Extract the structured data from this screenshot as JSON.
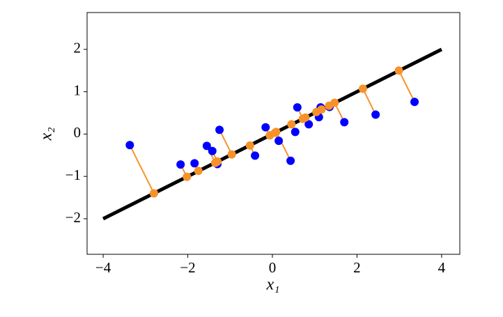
{
  "chart_data": {
    "type": "scatter",
    "x_label": "x₁",
    "y_label": "x₂",
    "xlim": [
      -4.38,
      4.43
    ],
    "ylim": [
      -2.84,
      2.87
    ],
    "xticks": [
      {
        "value": -4,
        "label": "−4"
      },
      {
        "value": -2,
        "label": "−2"
      },
      0,
      2,
      4
    ],
    "yticks": [
      {
        "value": -2,
        "label": "−2"
      },
      {
        "value": -1,
        "label": "−1"
      },
      0,
      1,
      2
    ],
    "line": {
      "color": "#000000",
      "x": [
        -4,
        4
      ],
      "values": [
        -2,
        2
      ]
    },
    "connector_color": "#f7922a",
    "series": [
      {
        "color": "#0000ff",
        "x": [
          -3.37,
          -2.17,
          -1.84,
          -1.55,
          -1.42,
          -1.3,
          -1.25,
          -0.41,
          -0.16,
          0.15,
          0.43,
          0.54,
          0.59,
          0.86,
          1.1,
          1.14,
          1.35,
          1.7,
          2.44,
          3.36
        ],
        "values": [
          -0.26,
          -0.72,
          -0.69,
          -0.28,
          -0.4,
          -0.71,
          0.1,
          -0.51,
          0.16,
          -0.16,
          -0.63,
          0.05,
          0.63,
          0.23,
          0.4,
          0.63,
          0.64,
          0.28,
          0.46,
          0.76
        ]
      },
      {
        "color": "#f7922a",
        "x": [
          -2.8,
          -2.02,
          -1.75,
          -1.35,
          -1.3,
          -1.32,
          -0.96,
          -0.53,
          -0.06,
          0.06,
          0.09,
          0.45,
          0.72,
          0.78,
          1.04,
          1.16,
          1.34,
          1.47,
          2.14,
          2.99
        ],
        "values": [
          -1.4,
          -1.01,
          -0.87,
          -0.68,
          -0.65,
          -0.66,
          -0.48,
          -0.27,
          -0.03,
          0.03,
          0.05,
          0.23,
          0.36,
          0.39,
          0.52,
          0.58,
          0.67,
          0.74,
          1.07,
          1.5
        ]
      }
    ]
  }
}
